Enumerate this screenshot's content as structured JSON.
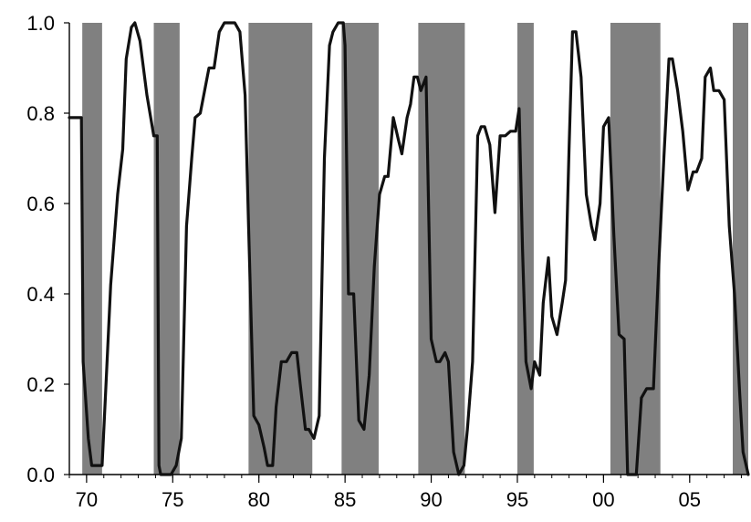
{
  "chart_data": {
    "type": "line",
    "title": "",
    "xlabel": "",
    "ylabel": "",
    "xlim": [
      1969.0,
      2008.4
    ],
    "ylim": [
      0,
      1
    ],
    "x_ticks": [
      {
        "x": 1970,
        "label": "70"
      },
      {
        "x": 1975,
        "label": "75"
      },
      {
        "x": 1980,
        "label": "80"
      },
      {
        "x": 1985,
        "label": "85"
      },
      {
        "x": 1990,
        "label": "90"
      },
      {
        "x": 1995,
        "label": "95"
      },
      {
        "x": 2000,
        "label": "00"
      },
      {
        "x": 2005,
        "label": "05"
      }
    ],
    "y_ticks": [
      {
        "y": 0.0,
        "label": "0.0"
      },
      {
        "y": 0.2,
        "label": "0.2"
      },
      {
        "y": 0.4,
        "label": "0.4"
      },
      {
        "y": 0.6,
        "label": "0.6"
      },
      {
        "y": 0.8,
        "label": "0.8"
      },
      {
        "y": 1.0,
        "label": "1.0"
      }
    ],
    "shaded_periods": [
      [
        1969.75,
        1970.9
      ],
      [
        1973.9,
        1975.4
      ],
      [
        1979.4,
        1983.1
      ],
      [
        1984.8,
        1986.95
      ],
      [
        1989.25,
        1991.95
      ],
      [
        1995.0,
        1995.95
      ],
      [
        2000.4,
        2003.3
      ],
      [
        2007.5,
        2008.4
      ]
    ],
    "colors": {
      "shade": "#808080",
      "line": "#111111",
      "axis": "#000000"
    },
    "series": [
      {
        "x": [
          1969.0,
          1969.5,
          1969.7,
          1969.8,
          1970.1,
          1970.3,
          1970.6,
          1970.9,
          1971.1,
          1971.4,
          1971.8,
          1972.1,
          1972.3,
          1972.6,
          1972.8,
          1973.1,
          1973.5,
          1973.9,
          1974.1,
          1974.2,
          1974.3,
          1974.6,
          1974.9,
          1975.2,
          1975.5,
          1975.8,
          1976.1,
          1976.3,
          1976.6,
          1976.9,
          1977.1,
          1977.4,
          1977.7,
          1978.0,
          1978.3,
          1978.6,
          1978.9,
          1979.2,
          1979.4,
          1979.7,
          1980.0,
          1980.3,
          1980.5,
          1980.8,
          1981.0,
          1981.3,
          1981.6,
          1981.9,
          1982.2,
          1982.4,
          1982.7,
          1982.9,
          1983.2,
          1983.5,
          1983.8,
          1984.1,
          1984.3,
          1984.6,
          1984.9,
          1985.0,
          1985.2,
          1985.5,
          1985.8,
          1986.1,
          1986.4,
          1986.7,
          1987.0,
          1987.3,
          1987.5,
          1987.8,
          1988.1,
          1988.3,
          1988.6,
          1988.8,
          1989.0,
          1989.2,
          1989.4,
          1989.7,
          1990.0,
          1990.3,
          1990.5,
          1990.8,
          1991.0,
          1991.3,
          1991.6,
          1991.9,
          1992.1,
          1992.4,
          1992.7,
          1992.9,
          1993.1,
          1993.4,
          1993.7,
          1994.0,
          1994.3,
          1994.6,
          1994.9,
          1995.1,
          1995.3,
          1995.5,
          1995.8,
          1996.0,
          1996.3,
          1996.5,
          1996.8,
          1997.0,
          1997.3,
          1997.6,
          1997.8,
          1998.0,
          1998.2,
          1998.4,
          1998.7,
          1999.0,
          1999.3,
          1999.5,
          1999.8,
          2000.0,
          2000.3,
          2000.6,
          2000.9,
          2001.2,
          2001.4,
          2001.7,
          2001.9,
          2002.2,
          2002.5,
          2002.7,
          2002.9,
          2003.2,
          2003.5,
          2003.8,
          2004.0,
          2004.3,
          2004.6,
          2004.9,
          2005.2,
          2005.4,
          2005.7,
          2005.9,
          2006.2,
          2006.4,
          2006.7,
          2007.0,
          2007.3,
          2007.6,
          2007.9,
          2008.1,
          2008.4
        ],
        "values": [
          0.79,
          0.79,
          0.79,
          0.25,
          0.08,
          0.02,
          0.02,
          0.02,
          0.18,
          0.42,
          0.62,
          0.72,
          0.92,
          0.99,
          1.0,
          0.96,
          0.84,
          0.75,
          0.75,
          0.02,
          0.0,
          0.0,
          0.0,
          0.02,
          0.08,
          0.55,
          0.7,
          0.79,
          0.8,
          0.86,
          0.9,
          0.9,
          0.98,
          1.0,
          1.0,
          1.0,
          0.98,
          0.84,
          0.55,
          0.13,
          0.11,
          0.06,
          0.02,
          0.02,
          0.15,
          0.25,
          0.25,
          0.27,
          0.27,
          0.2,
          0.1,
          0.1,
          0.08,
          0.13,
          0.7,
          0.95,
          0.98,
          1.0,
          1.0,
          0.95,
          0.4,
          0.4,
          0.12,
          0.1,
          0.22,
          0.46,
          0.62,
          0.66,
          0.66,
          0.79,
          0.74,
          0.71,
          0.79,
          0.82,
          0.88,
          0.88,
          0.85,
          0.88,
          0.3,
          0.25,
          0.25,
          0.27,
          0.25,
          0.05,
          0.0,
          0.02,
          0.1,
          0.25,
          0.75,
          0.77,
          0.77,
          0.73,
          0.58,
          0.75,
          0.75,
          0.76,
          0.76,
          0.81,
          0.5,
          0.25,
          0.19,
          0.25,
          0.22,
          0.38,
          0.48,
          0.35,
          0.31,
          0.38,
          0.43,
          0.72,
          0.98,
          0.98,
          0.88,
          0.62,
          0.55,
          0.52,
          0.6,
          0.77,
          0.79,
          0.53,
          0.31,
          0.3,
          0.0,
          0.0,
          0.0,
          0.17,
          0.19,
          0.19,
          0.19,
          0.46,
          0.7,
          0.92,
          0.92,
          0.85,
          0.76,
          0.63,
          0.67,
          0.67,
          0.7,
          0.88,
          0.9,
          0.85,
          0.85,
          0.83,
          0.55,
          0.4,
          0.18,
          0.05,
          0.0
        ]
      }
    ]
  }
}
